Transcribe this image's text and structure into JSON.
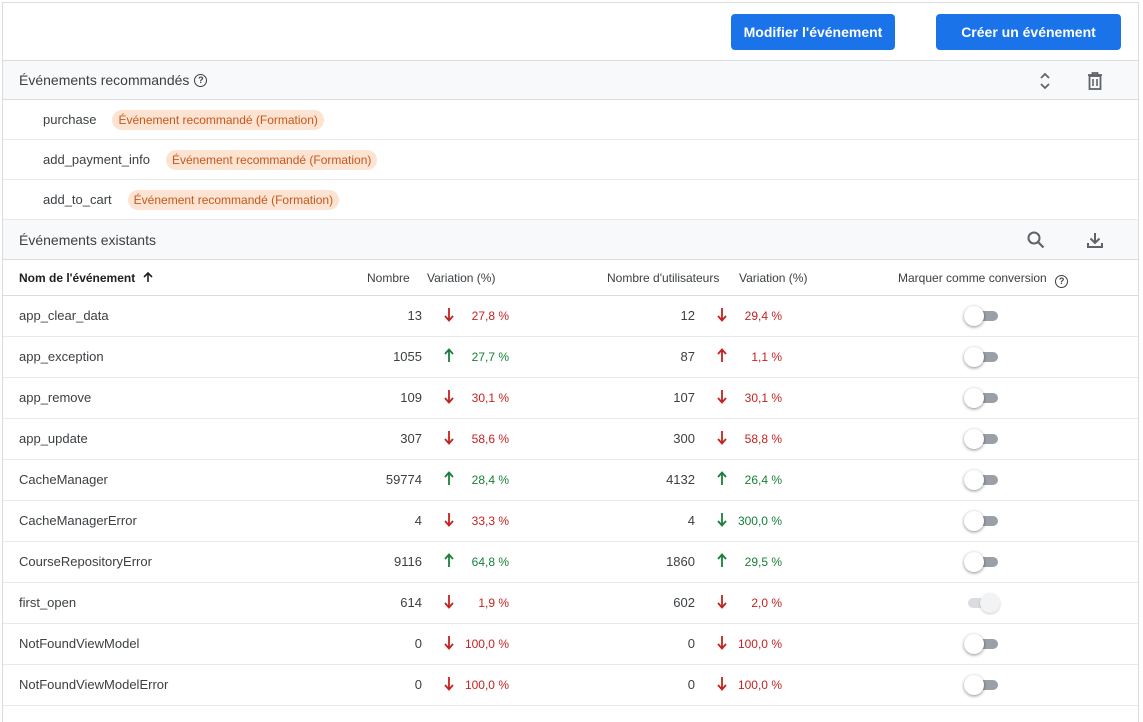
{
  "toolbar": {
    "modify_label": "Modifier l'événement",
    "create_label": "Créer un événement"
  },
  "recommended": {
    "title": "Événements recommandés",
    "items": [
      {
        "name": "purchase",
        "badge": "Événement recommandé (Formation)"
      },
      {
        "name": "add_payment_info",
        "badge": "Événement recommandé (Formation)"
      },
      {
        "name": "add_to_cart",
        "badge": "Événement recommandé (Formation)"
      }
    ]
  },
  "existing": {
    "title": "Événements existants",
    "columns": {
      "name": "Nom de l'événement",
      "count": "Nombre",
      "variation": "Variation (%)",
      "users": "Nombre d'utilisateurs",
      "users_variation": "Variation (%)",
      "conversion": "Marquer comme conversion"
    },
    "rows": [
      {
        "name": "app_clear_data",
        "count": "13",
        "var": "27,8 %",
        "var_dir": "down",
        "var_color": "red",
        "users": "12",
        "uvar": "29,4 %",
        "uvar_dir": "down",
        "uvar_color": "red",
        "conversion": false,
        "disabled": false
      },
      {
        "name": "app_exception",
        "count": "1055",
        "var": "27,7 %",
        "var_dir": "up",
        "var_color": "green",
        "users": "87",
        "uvar": "1,1 %",
        "uvar_dir": "up",
        "uvar_color": "red",
        "conversion": false,
        "disabled": false
      },
      {
        "name": "app_remove",
        "count": "109",
        "var": "30,1 %",
        "var_dir": "down",
        "var_color": "red",
        "users": "107",
        "uvar": "30,1 %",
        "uvar_dir": "down",
        "uvar_color": "red",
        "conversion": false,
        "disabled": false
      },
      {
        "name": "app_update",
        "count": "307",
        "var": "58,6 %",
        "var_dir": "down",
        "var_color": "red",
        "users": "300",
        "uvar": "58,8 %",
        "uvar_dir": "down",
        "uvar_color": "red",
        "conversion": false,
        "disabled": false
      },
      {
        "name": "CacheManager",
        "count": "59774",
        "var": "28,4 %",
        "var_dir": "up",
        "var_color": "green",
        "users": "4132",
        "uvar": "26,4 %",
        "uvar_dir": "up",
        "uvar_color": "green",
        "conversion": false,
        "disabled": false
      },
      {
        "name": "CacheManagerError",
        "count": "4",
        "var": "33,3 %",
        "var_dir": "down",
        "var_color": "red",
        "users": "4",
        "uvar": "300,0 %",
        "uvar_dir": "down",
        "uvar_color": "green",
        "conversion": false,
        "disabled": false
      },
      {
        "name": "CourseRepositoryError",
        "count": "9116",
        "var": "64,8 %",
        "var_dir": "up",
        "var_color": "green",
        "users": "1860",
        "uvar": "29,5 %",
        "uvar_dir": "up",
        "uvar_color": "green",
        "conversion": false,
        "disabled": false
      },
      {
        "name": "first_open",
        "count": "614",
        "var": "1,9 %",
        "var_dir": "down",
        "var_color": "red",
        "users": "602",
        "uvar": "2,0 %",
        "uvar_dir": "down",
        "uvar_color": "red",
        "conversion": true,
        "disabled": true
      },
      {
        "name": "NotFoundViewModel",
        "count": "0",
        "var": "100,0 %",
        "var_dir": "down",
        "var_color": "red",
        "users": "0",
        "uvar": "100,0 %",
        "uvar_dir": "down",
        "uvar_color": "red",
        "conversion": false,
        "disabled": false
      },
      {
        "name": "NotFoundViewModelError",
        "count": "0",
        "var": "100,0 %",
        "var_dir": "down",
        "var_color": "red",
        "users": "0",
        "uvar": "100,0 %",
        "uvar_dir": "down",
        "uvar_color": "red",
        "conversion": false,
        "disabled": false
      }
    ]
  },
  "colors": {
    "primary": "#1a73e8",
    "negative": "#c5221f",
    "positive": "#188038",
    "chip_bg": "#fce3d2",
    "chip_text": "#c5581e"
  },
  "icons": {
    "sort": "arrow-up-icon",
    "expand": "unfold-icon",
    "delete": "trash-icon",
    "search": "search-icon",
    "download": "download-icon",
    "help": "help-icon"
  }
}
